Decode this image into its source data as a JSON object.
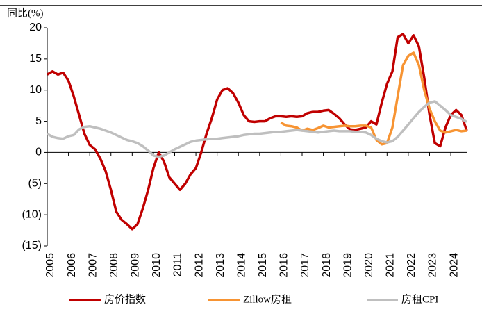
{
  "chart_data": {
    "type": "line",
    "y_label": "同比(%)",
    "x": [
      2005,
      2005.25,
      2005.5,
      2005.75,
      2006,
      2006.25,
      2006.5,
      2006.75,
      2007,
      2007.25,
      2007.5,
      2007.75,
      2008,
      2008.25,
      2008.5,
      2008.75,
      2009,
      2009.25,
      2009.5,
      2009.75,
      2010,
      2010.25,
      2010.5,
      2010.75,
      2011,
      2011.25,
      2011.5,
      2011.75,
      2012,
      2012.25,
      2012.5,
      2012.75,
      2013,
      2013.25,
      2013.5,
      2013.75,
      2014,
      2014.25,
      2014.5,
      2014.75,
      2015,
      2015.25,
      2015.5,
      2015.75,
      2016,
      2016.25,
      2016.5,
      2016.75,
      2017,
      2017.25,
      2017.5,
      2017.75,
      2018,
      2018.25,
      2018.5,
      2018.75,
      2019,
      2019.25,
      2019.5,
      2019.75,
      2020,
      2020.25,
      2020.5,
      2020.75,
      2021,
      2021.25,
      2021.5,
      2021.75,
      2022,
      2022.25,
      2022.5,
      2022.75,
      2023,
      2023.25,
      2023.5,
      2023.75,
      2024,
      2024.25,
      2024.5,
      2024.75
    ],
    "series": [
      {
        "name": "房价指数",
        "color": "#c00000",
        "values": [
          12.5,
          13,
          12.5,
          12.8,
          11.5,
          9,
          6,
          3,
          1.2,
          0.5,
          -1,
          -3,
          -6,
          -9.5,
          -10.8,
          -11.5,
          -12.3,
          -11.5,
          -9,
          -6,
          -2.5,
          0,
          -1.5,
          -4,
          -5,
          -6,
          -5,
          -3.5,
          -2.5,
          0,
          3,
          5.5,
          8.5,
          10,
          10.3,
          9.5,
          8,
          6,
          5,
          4.9,
          5,
          5,
          5.5,
          5.8,
          5.8,
          5.7,
          5.8,
          5.7,
          5.8,
          6.3,
          6.5,
          6.5,
          6.7,
          6.8,
          6.2,
          5.5,
          4.5,
          3.7,
          3.6,
          3.8,
          4,
          5,
          4.5,
          8,
          11,
          13,
          18.5,
          19,
          17.5,
          18.8,
          17,
          12,
          6,
          1.5,
          1,
          4,
          6,
          6.8,
          6,
          3.5
        ]
      },
      {
        "name": "Zillow房租",
        "color": "#f79433",
        "values": [
          null,
          null,
          null,
          null,
          null,
          null,
          null,
          null,
          null,
          null,
          null,
          null,
          null,
          null,
          null,
          null,
          null,
          null,
          null,
          null,
          null,
          null,
          null,
          null,
          null,
          null,
          null,
          null,
          null,
          null,
          null,
          null,
          null,
          null,
          null,
          null,
          null,
          null,
          null,
          null,
          null,
          null,
          null,
          null,
          4.8,
          4.3,
          4.2,
          4,
          3.5,
          3.8,
          3.6,
          3.9,
          4.3,
          4,
          4.1,
          4.2,
          4.3,
          4.2,
          4.2,
          4.3,
          4.3,
          4,
          2,
          1.3,
          1.5,
          4,
          9,
          14,
          15.5,
          16,
          14,
          10,
          7,
          5,
          3.5,
          3.2,
          3.4,
          3.6,
          3.4,
          3.5
        ]
      },
      {
        "name": "房租CPI",
        "color": "#bfbfbf",
        "values": [
          3,
          2.5,
          2.3,
          2.2,
          2.6,
          2.8,
          3.7,
          4.1,
          4.2,
          4,
          3.8,
          3.5,
          3.2,
          2.8,
          2.4,
          2,
          1.8,
          1.5,
          1,
          0.3,
          -0.5,
          -0.7,
          -0.5,
          0,
          0.5,
          0.9,
          1.3,
          1.7,
          1.9,
          2,
          2.1,
          2.2,
          2.2,
          2.3,
          2.4,
          2.5,
          2.6,
          2.8,
          2.9,
          3,
          3,
          3.1,
          3.2,
          3.3,
          3.3,
          3.4,
          3.5,
          3.6,
          3.5,
          3.4,
          3.3,
          3.2,
          3.3,
          3.4,
          3.5,
          3.4,
          3.4,
          3.4,
          3.3,
          3.3,
          3.2,
          2.8,
          2.2,
          1.8,
          1.6,
          1.8,
          2.5,
          3.5,
          4.5,
          5.5,
          6.5,
          7.3,
          8,
          8.2,
          7.5,
          6.8,
          6,
          5.7,
          5.4,
          4.9
        ]
      }
    ],
    "xlim": [
      2005,
      2024.75
    ],
    "xticks": [
      2005,
      2006,
      2007,
      2008,
      2009,
      2010,
      2011,
      2012,
      2013,
      2014,
      2015,
      2016,
      2017,
      2018,
      2019,
      2020,
      2021,
      2022,
      2023,
      2024
    ],
    "ylim": [
      -15,
      20
    ],
    "yticks": [
      {
        "value": -15,
        "label": "(15)"
      },
      {
        "value": -10,
        "label": "(10)"
      },
      {
        "value": -5,
        "label": "(5)"
      },
      0,
      5,
      10,
      15,
      20
    ],
    "negative_tick_color": "#e00000",
    "legend": "bottom"
  }
}
